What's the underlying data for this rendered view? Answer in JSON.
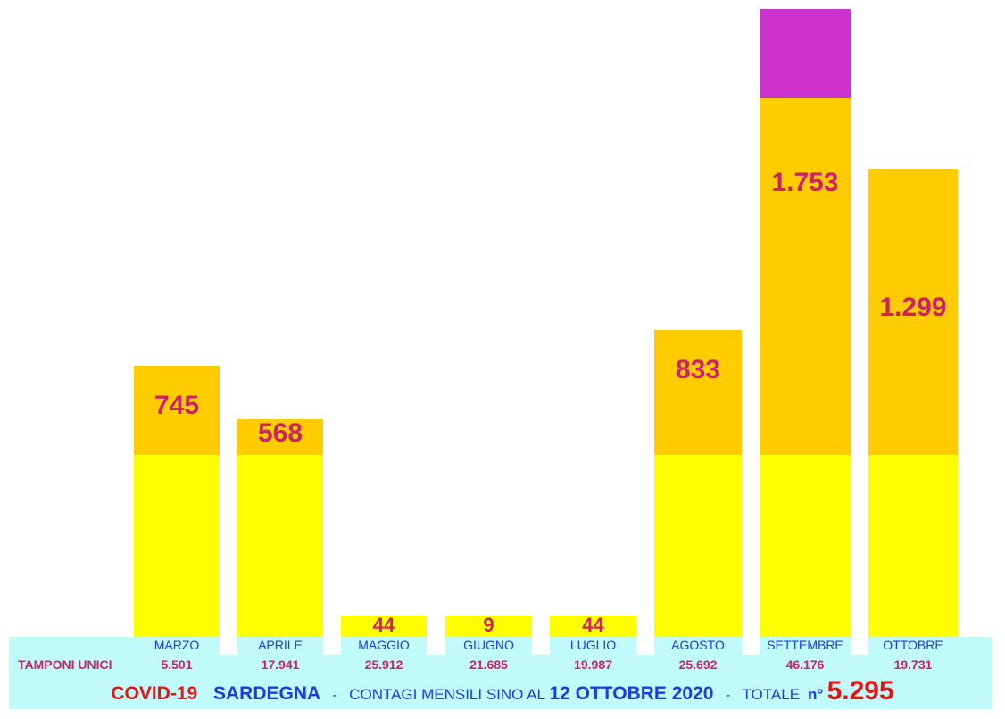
{
  "chart_data": {
    "type": "bar",
    "categories": [
      "MARZO",
      "APRILE",
      "MAGGIO",
      "GIUGNO",
      "LUGLIO",
      "AGOSTO",
      "SETTEMBRE",
      "OTTOBRE"
    ],
    "values": [
      745,
      568,
      44,
      9,
      44,
      833,
      1753,
      1299
    ],
    "value_labels": [
      "745",
      "568",
      "44",
      "9",
      "44",
      "833",
      "1.753",
      "1.299"
    ],
    "tamponi_label": "TAMPONI UNICI",
    "tamponi": [
      "5.501",
      "17.941",
      "25.912",
      "21.685",
      "19.987",
      "25.692",
      "46.176",
      "19.731"
    ],
    "colors": {
      "base": "#ffff00",
      "top": "#ffcc00",
      "overflow": "#cc33cc",
      "value_text": "#cc2266",
      "month_text": "#1a3de0",
      "band": "#c0fafa"
    }
  },
  "title": {
    "part1": "COVID-19",
    "part2": "SARDEGNA",
    "sep1": "-",
    "part3": "CONTAGI MENSILI SINO AL",
    "date": "12 OTTOBRE 2020",
    "sep2": "-",
    "totale": "TOTALE",
    "n": "n°",
    "total_value": "5.295"
  }
}
